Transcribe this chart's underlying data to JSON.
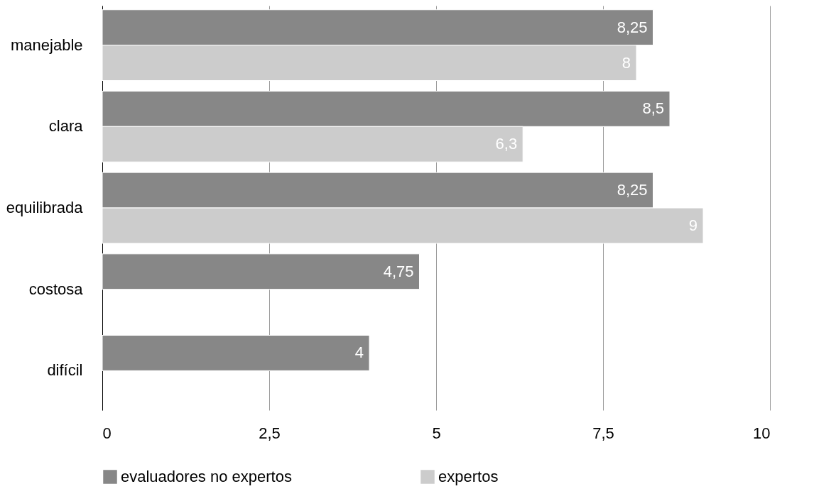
{
  "chart_data": {
    "type": "bar",
    "orientation": "horizontal",
    "categories": [
      "manejable",
      "clara",
      "equilibrada",
      "costosa",
      "difícil"
    ],
    "series": [
      {
        "name": "evaluadores no expertos",
        "color": "#878787",
        "values": [
          8.25,
          8.5,
          8.25,
          4.75,
          4
        ],
        "value_labels": [
          "8,25",
          "8,5",
          "8,25",
          "4,75",
          "4"
        ]
      },
      {
        "name": "expertos",
        "color": "#cccccc",
        "values": [
          8,
          6.3,
          9,
          null,
          null
        ],
        "value_labels": [
          "8",
          "6,3",
          "9",
          null,
          null
        ]
      }
    ],
    "xlim": [
      0,
      10
    ],
    "xticks": [
      0,
      {
        "value": 2.5,
        "label": "2,5"
      },
      5,
      {
        "value": 7.5,
        "label": "7,5"
      },
      10
    ],
    "grid": "x",
    "legend": "bottom"
  }
}
